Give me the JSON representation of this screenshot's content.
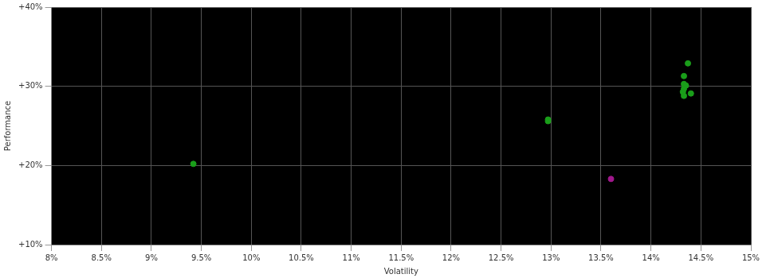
{
  "chart_data": {
    "type": "scatter",
    "x_label": "Volatility",
    "y_label": "Performance",
    "xlim": [
      8,
      15
    ],
    "xticks": [
      {
        "value": 8,
        "label": "8%"
      },
      {
        "value": 8.5,
        "label": "8.5%"
      },
      {
        "value": 9,
        "label": "9%"
      },
      {
        "value": 9.5,
        "label": "9.5%"
      },
      {
        "value": 10,
        "label": "10%"
      },
      {
        "value": 10.5,
        "label": "10.5%"
      },
      {
        "value": 11,
        "label": "11%"
      },
      {
        "value": 11.5,
        "label": "11.5%"
      },
      {
        "value": 12,
        "label": "12%"
      },
      {
        "value": 12.5,
        "label": "12.5%"
      },
      {
        "value": 13,
        "label": "13%"
      },
      {
        "value": 13.5,
        "label": "13.5%"
      },
      {
        "value": 14,
        "label": "14%"
      },
      {
        "value": 14.5,
        "label": "14.5%"
      },
      {
        "value": 15,
        "label": "15%"
      }
    ],
    "ylim": [
      10,
      40
    ],
    "yticks": [
      {
        "value": 10,
        "label": "+10%"
      },
      {
        "value": 20,
        "label": "+20%"
      },
      {
        "value": 30,
        "label": "+30%"
      },
      {
        "value": 40,
        "label": "+40%"
      }
    ],
    "grid": true,
    "series": [
      {
        "color": "#1a9e1a",
        "marker": "circle",
        "x": [
          9.42,
          12.97,
          12.97,
          14.37,
          14.33,
          14.33,
          14.35,
          14.33,
          14.32,
          14.33,
          14.4
        ],
        "values": [
          20.2,
          25.8,
          25.6,
          32.9,
          31.3,
          30.3,
          30.1,
          29.7,
          29.3,
          28.8,
          29.1
        ]
      },
      {
        "color": "#a0188c",
        "marker": "circle",
        "x": [
          13.6
        ],
        "values": [
          18.3
        ]
      }
    ]
  }
}
